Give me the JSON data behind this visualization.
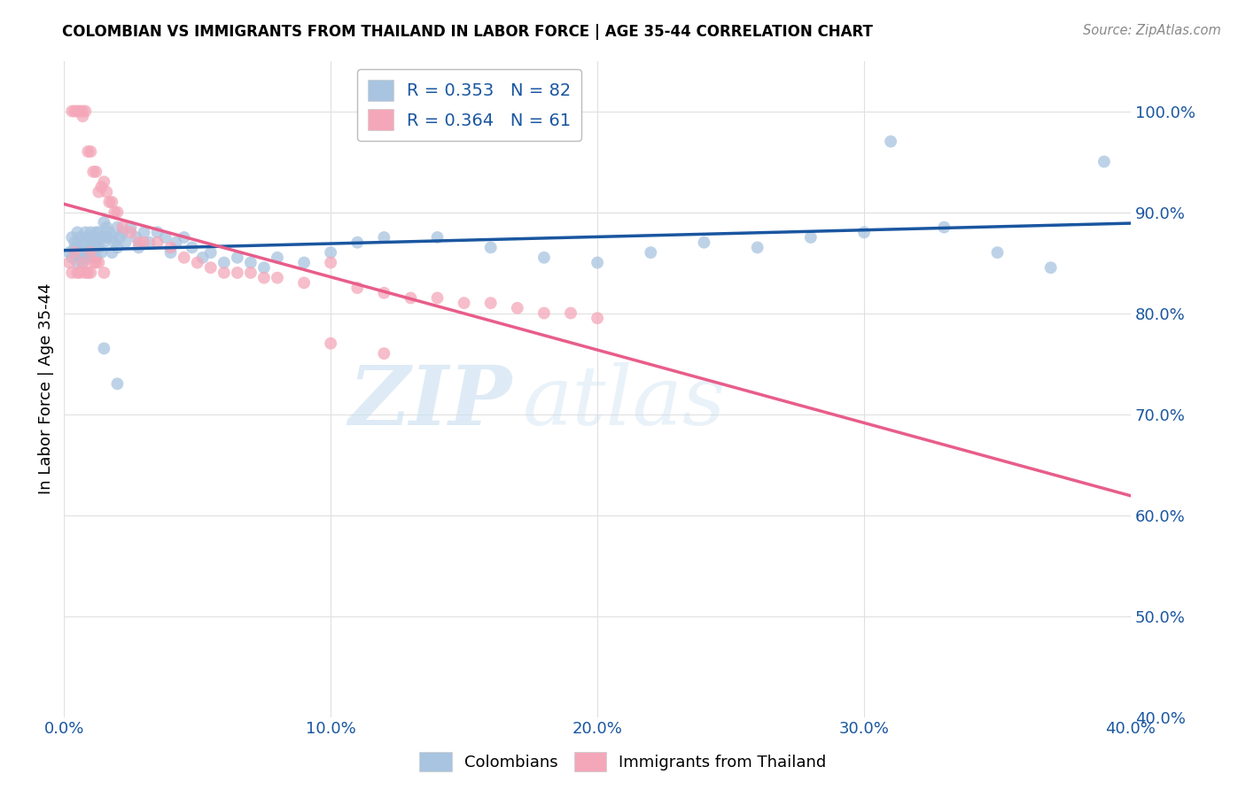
{
  "title": "COLOMBIAN VS IMMIGRANTS FROM THAILAND IN LABOR FORCE | AGE 35-44 CORRELATION CHART",
  "source": "Source: ZipAtlas.com",
  "ylabel": "In Labor Force | Age 35-44",
  "xlim": [
    0.0,
    0.4
  ],
  "ylim": [
    0.4,
    1.05
  ],
  "xticks": [
    0.0,
    0.1,
    0.2,
    0.3,
    0.4
  ],
  "xticklabels": [
    "0.0%",
    "10.0%",
    "20.0%",
    "30.0%",
    "40.0%"
  ],
  "yticks": [
    0.4,
    0.5,
    0.6,
    0.7,
    0.8,
    0.9,
    1.0
  ],
  "yticklabels": [
    "40.0%",
    "50.0%",
    "60.0%",
    "70.0%",
    "80.0%",
    "90.0%",
    "100.0%"
  ],
  "blue_R": 0.353,
  "blue_N": 82,
  "pink_R": 0.364,
  "pink_N": 61,
  "blue_color": "#a8c4e0",
  "pink_color": "#f4a7b9",
  "blue_line_color": "#1a56a0",
  "pink_line_color": "#e85d8a",
  "legend_text_color": "#1a56a0",
  "blue_x": [
    0.002,
    0.003,
    0.003,
    0.004,
    0.004,
    0.005,
    0.005,
    0.005,
    0.006,
    0.006,
    0.006,
    0.007,
    0.007,
    0.007,
    0.008,
    0.008,
    0.008,
    0.009,
    0.009,
    0.01,
    0.01,
    0.01,
    0.011,
    0.011,
    0.012,
    0.012,
    0.012,
    0.013,
    0.013,
    0.014,
    0.014,
    0.015,
    0.015,
    0.016,
    0.016,
    0.017,
    0.018,
    0.018,
    0.019,
    0.02,
    0.02,
    0.021,
    0.022,
    0.023,
    0.025,
    0.027,
    0.028,
    0.03,
    0.032,
    0.035,
    0.038,
    0.04,
    0.042,
    0.045,
    0.048,
    0.052,
    0.055,
    0.06,
    0.065,
    0.07,
    0.075,
    0.08,
    0.09,
    0.1,
    0.11,
    0.12,
    0.14,
    0.16,
    0.18,
    0.2,
    0.22,
    0.24,
    0.26,
    0.28,
    0.3,
    0.31,
    0.33,
    0.35,
    0.37,
    0.39,
    0.015,
    0.02
  ],
  "blue_y": [
    0.86,
    0.875,
    0.855,
    0.87,
    0.865,
    0.88,
    0.865,
    0.85,
    0.875,
    0.86,
    0.855,
    0.87,
    0.86,
    0.85,
    0.88,
    0.87,
    0.855,
    0.875,
    0.86,
    0.87,
    0.88,
    0.855,
    0.875,
    0.865,
    0.88,
    0.87,
    0.855,
    0.88,
    0.865,
    0.875,
    0.86,
    0.89,
    0.87,
    0.885,
    0.875,
    0.88,
    0.875,
    0.86,
    0.87,
    0.885,
    0.865,
    0.875,
    0.88,
    0.87,
    0.885,
    0.875,
    0.865,
    0.88,
    0.87,
    0.88,
    0.875,
    0.86,
    0.87,
    0.875,
    0.865,
    0.855,
    0.86,
    0.85,
    0.855,
    0.85,
    0.845,
    0.855,
    0.85,
    0.86,
    0.87,
    0.875,
    0.875,
    0.865,
    0.855,
    0.85,
    0.86,
    0.87,
    0.865,
    0.875,
    0.88,
    0.97,
    0.885,
    0.86,
    0.845,
    0.95,
    0.765,
    0.73
  ],
  "pink_x": [
    0.002,
    0.003,
    0.003,
    0.004,
    0.004,
    0.005,
    0.005,
    0.006,
    0.006,
    0.007,
    0.007,
    0.007,
    0.008,
    0.008,
    0.009,
    0.009,
    0.01,
    0.01,
    0.01,
    0.011,
    0.011,
    0.012,
    0.012,
    0.013,
    0.013,
    0.014,
    0.015,
    0.015,
    0.016,
    0.017,
    0.018,
    0.019,
    0.02,
    0.022,
    0.025,
    0.028,
    0.03,
    0.035,
    0.04,
    0.045,
    0.05,
    0.055,
    0.06,
    0.065,
    0.07,
    0.075,
    0.08,
    0.09,
    0.1,
    0.11,
    0.12,
    0.13,
    0.14,
    0.15,
    0.16,
    0.17,
    0.18,
    0.19,
    0.2,
    0.1,
    0.12
  ],
  "pink_y": [
    0.85,
    0.84,
    1.0,
    1.0,
    0.86,
    1.0,
    0.84,
    1.0,
    0.84,
    1.0,
    0.995,
    0.85,
    1.0,
    0.84,
    0.96,
    0.84,
    0.96,
    0.86,
    0.84,
    0.94,
    0.85,
    0.94,
    0.85,
    0.92,
    0.85,
    0.925,
    0.93,
    0.84,
    0.92,
    0.91,
    0.91,
    0.9,
    0.9,
    0.885,
    0.88,
    0.87,
    0.87,
    0.87,
    0.865,
    0.855,
    0.85,
    0.845,
    0.84,
    0.84,
    0.84,
    0.835,
    0.835,
    0.83,
    0.85,
    0.825,
    0.82,
    0.815,
    0.815,
    0.81,
    0.81,
    0.805,
    0.8,
    0.8,
    0.795,
    0.77,
    0.76
  ],
  "watermark_zip": "ZIP",
  "watermark_atlas": "atlas",
  "background_color": "#ffffff",
  "grid_color": "#e0e0e0"
}
